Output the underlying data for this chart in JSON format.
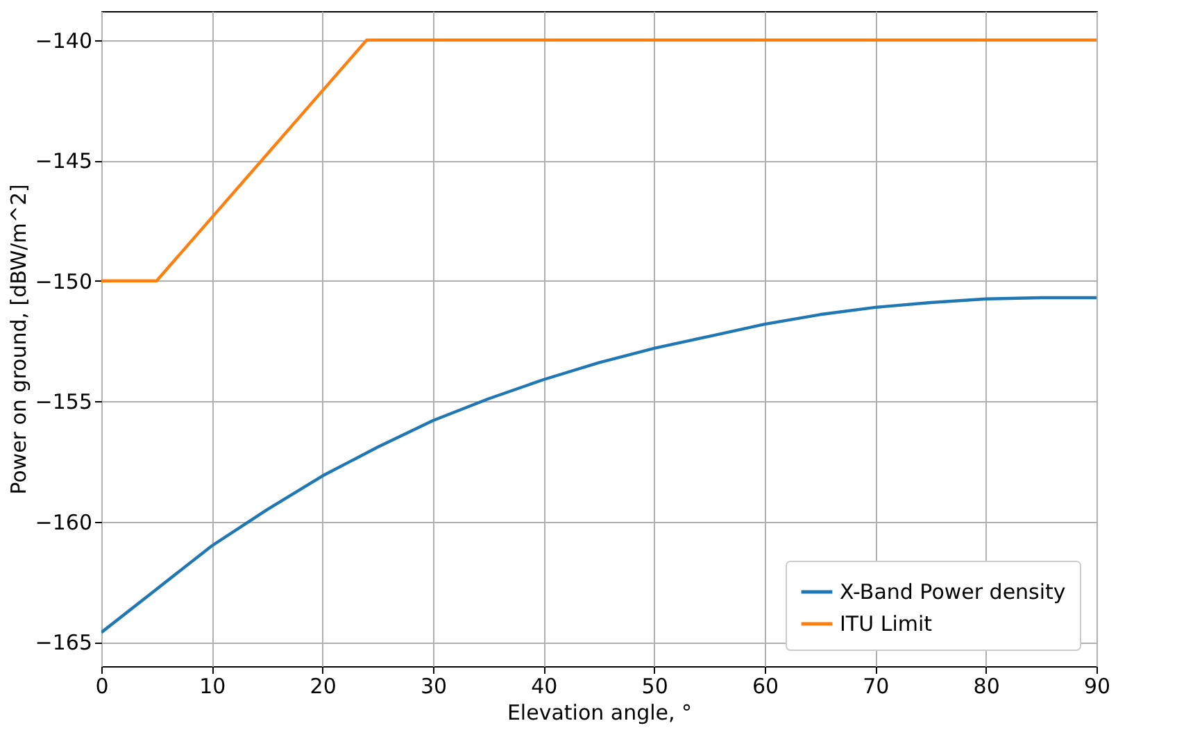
{
  "chart_data": {
    "type": "line",
    "xlabel": "Elevation angle, °",
    "ylabel": "Power on ground, [dBW/m^2]",
    "xlim": [
      0,
      90
    ],
    "xticks": [
      0,
      10,
      20,
      30,
      40,
      50,
      60,
      70,
      80,
      90
    ],
    "ylim": [
      -166,
      -138.8
    ],
    "yticks": [
      -165,
      -160,
      -155,
      -150,
      -145,
      -140
    ],
    "grid": true,
    "legend": "bottom right",
    "line_style": "solid",
    "series": [
      {
        "name": "X-Band Power density",
        "color": "#1f77b4",
        "x": [
          0,
          5,
          10,
          15,
          20,
          25,
          30,
          35,
          40,
          45,
          50,
          55,
          60,
          65,
          70,
          75,
          80,
          85,
          90
        ],
        "values": [
          -164.6,
          -162.8,
          -161,
          -159.5,
          -158.1,
          -156.9,
          -155.8,
          -154.9,
          -154.1,
          -153.4,
          -152.8,
          -152.3,
          -151.8,
          -151.4,
          -151.1,
          -150.9,
          -150.75,
          -150.7,
          -150.7
        ]
      },
      {
        "name": "ITU Limit",
        "color": "#ff7f0e",
        "x": [
          0,
          5,
          24,
          90
        ],
        "values": [
          -150,
          -150,
          -140,
          -140
        ]
      }
    ]
  }
}
